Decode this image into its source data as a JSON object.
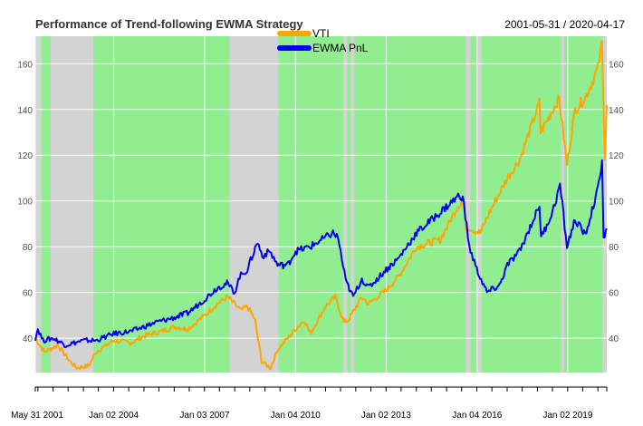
{
  "chart_data": {
    "type": "line",
    "title": "Performance of Trend-following EWMA Strategy",
    "date_range": "2001-05-31 / 2020-04-17",
    "x_ticks": [
      "May 31 2001",
      "Jan 02 2004",
      "Jan 03 2007",
      "Jan 04 2010",
      "Jan 02 2013",
      "Jan 04 2016",
      "Jan 02 2019"
    ],
    "y_ticks": [
      40,
      60,
      80,
      100,
      120,
      140,
      160
    ],
    "ylim": [
      25,
      172
    ],
    "grid": true,
    "legend_position": "top-center",
    "background_regimes": {
      "description_colors": {
        "long": "#90ee90",
        "flat": "#d3d3d3"
      },
      "long_color": "#90ee90",
      "flat_color": "#d3d3d3",
      "flat_periods": [
        [
          "2001-05-31",
          "2001-08-15"
        ],
        [
          "2001-12-01",
          "2003-05-01"
        ],
        [
          "2007-11-01",
          "2009-06-15"
        ],
        [
          "2011-08-01",
          "2011-09-20"
        ],
        [
          "2011-11-01",
          "2011-12-15"
        ],
        [
          "2015-08-20",
          "2015-10-15"
        ],
        [
          "2016-01-01",
          "2016-03-01"
        ],
        [
          "2018-10-15",
          "2018-11-20"
        ],
        [
          "2020-02-25",
          "2020-04-17"
        ]
      ]
    },
    "series": [
      {
        "name": "VTI",
        "color": "#ffa500",
        "points": [
          [
            "2001-05-31",
            40
          ],
          [
            "2001-09-20",
            34
          ],
          [
            "2002-03-01",
            37
          ],
          [
            "2002-07-20",
            30
          ],
          [
            "2002-10-10",
            27
          ],
          [
            "2003-03-10",
            28
          ],
          [
            "2003-06-01",
            34
          ],
          [
            "2004-01-02",
            39
          ],
          [
            "2004-08-01",
            38
          ],
          [
            "2005-01-01",
            41
          ],
          [
            "2005-08-01",
            43
          ],
          [
            "2006-01-01",
            45
          ],
          [
            "2006-06-15",
            44
          ],
          [
            "2007-01-03",
            50
          ],
          [
            "2007-06-01",
            55
          ],
          [
            "2007-10-09",
            58
          ],
          [
            "2008-03-15",
            52
          ],
          [
            "2008-06-01",
            54
          ],
          [
            "2008-09-01",
            48
          ],
          [
            "2008-11-20",
            30
          ],
          [
            "2009-03-09",
            27
          ],
          [
            "2009-06-01",
            35
          ],
          [
            "2009-10-01",
            40
          ],
          [
            "2010-01-04",
            44
          ],
          [
            "2010-04-20",
            48
          ],
          [
            "2010-07-01",
            42
          ],
          [
            "2011-01-01",
            54
          ],
          [
            "2011-04-29",
            58
          ],
          [
            "2011-08-10",
            47
          ],
          [
            "2011-10-03",
            48
          ],
          [
            "2012-03-15",
            58
          ],
          [
            "2012-06-01",
            55
          ],
          [
            "2013-01-02",
            61
          ],
          [
            "2013-06-01",
            67
          ],
          [
            "2014-01-02",
            80
          ],
          [
            "2014-10-15",
            83
          ],
          [
            "2015-05-20",
            98
          ],
          [
            "2015-07-15",
            100
          ],
          [
            "2015-08-25",
            89
          ],
          [
            "2016-02-11",
            86
          ],
          [
            "2016-06-01",
            95
          ],
          [
            "2017-01-03",
            110
          ],
          [
            "2017-06-01",
            118
          ],
          [
            "2018-01-26",
            143
          ],
          [
            "2018-02-08",
            130
          ],
          [
            "2018-09-20",
            145
          ],
          [
            "2018-12-24",
            116
          ],
          [
            "2019-04-01",
            140
          ],
          [
            "2019-08-01",
            145
          ],
          [
            "2020-01-01",
            158
          ],
          [
            "2020-02-19",
            169
          ],
          [
            "2020-03-23",
            120
          ],
          [
            "2020-04-17",
            142
          ]
        ]
      },
      {
        "name": "EWMA PnL",
        "color": "#0000ee",
        "points": [
          [
            "2001-05-31",
            40
          ],
          [
            "2001-07-01",
            44
          ],
          [
            "2001-09-01",
            39
          ],
          [
            "2002-01-01",
            40
          ],
          [
            "2002-06-01",
            37
          ],
          [
            "2003-01-01",
            39
          ],
          [
            "2003-06-01",
            39
          ],
          [
            "2004-01-02",
            42
          ],
          [
            "2004-08-01",
            43
          ],
          [
            "2005-06-01",
            47
          ],
          [
            "2006-01-01",
            49
          ],
          [
            "2006-06-15",
            51
          ],
          [
            "2007-01-03",
            57
          ],
          [
            "2007-06-01",
            62
          ],
          [
            "2007-10-01",
            64
          ],
          [
            "2008-01-01",
            60
          ],
          [
            "2008-03-01",
            67
          ],
          [
            "2008-06-01",
            70
          ],
          [
            "2008-10-01",
            82
          ],
          [
            "2008-12-01",
            76
          ],
          [
            "2009-03-01",
            78
          ],
          [
            "2009-06-01",
            72
          ],
          [
            "2009-10-01",
            72
          ],
          [
            "2010-01-04",
            78
          ],
          [
            "2010-07-01",
            80
          ],
          [
            "2011-04-01",
            86
          ],
          [
            "2011-06-01",
            84
          ],
          [
            "2011-09-01",
            65
          ],
          [
            "2011-12-01",
            58
          ],
          [
            "2012-03-15",
            66
          ],
          [
            "2012-06-01",
            62
          ],
          [
            "2013-01-02",
            70
          ],
          [
            "2013-06-01",
            75
          ],
          [
            "2014-01-02",
            86
          ],
          [
            "2014-10-15",
            95
          ],
          [
            "2015-05-20",
            102
          ],
          [
            "2015-07-15",
            102
          ],
          [
            "2015-10-01",
            80
          ],
          [
            "2016-01-01",
            70
          ],
          [
            "2016-05-01",
            60
          ],
          [
            "2016-10-01",
            63
          ],
          [
            "2017-01-03",
            72
          ],
          [
            "2017-06-01",
            78
          ],
          [
            "2018-01-26",
            98
          ],
          [
            "2018-02-15",
            84
          ],
          [
            "2018-07-01",
            95
          ],
          [
            "2018-10-01",
            107
          ],
          [
            "2018-12-24",
            80
          ],
          [
            "2019-04-01",
            92
          ],
          [
            "2019-08-01",
            85
          ],
          [
            "2020-01-01",
            105
          ],
          [
            "2020-02-20",
            118
          ],
          [
            "2020-03-10",
            83
          ],
          [
            "2020-04-17",
            88
          ]
        ]
      }
    ]
  }
}
